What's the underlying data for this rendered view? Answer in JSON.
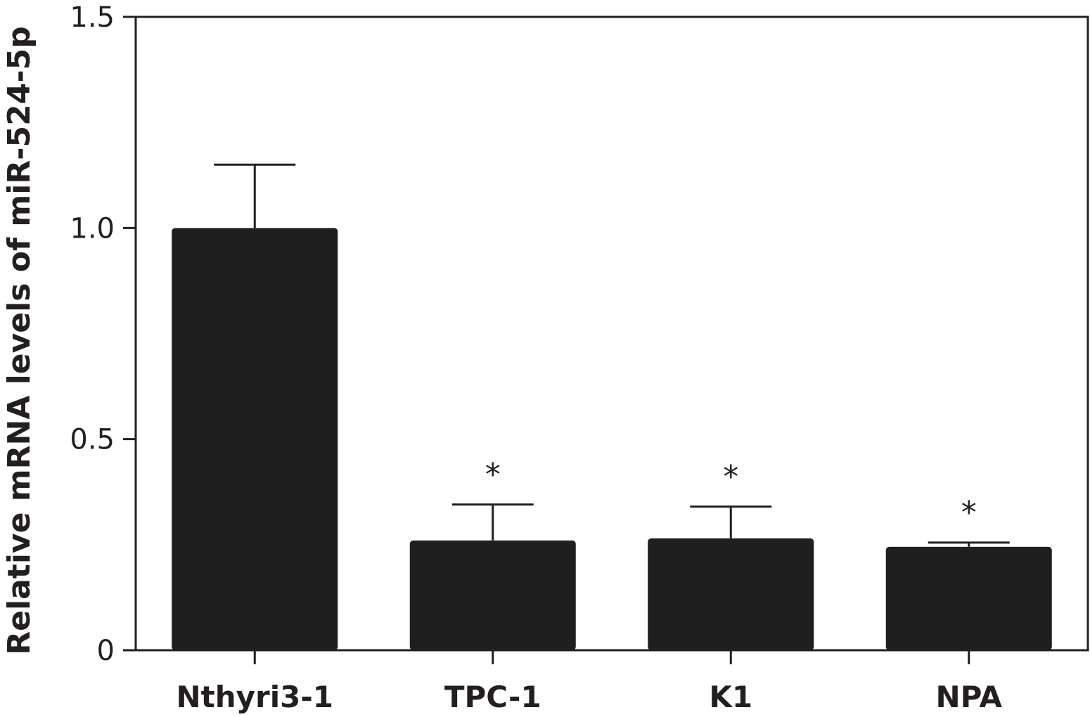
{
  "chart_data": {
    "type": "bar",
    "categories": [
      "Nthyri3-1",
      "TPC-1",
      "K1",
      "NPA"
    ],
    "values": [
      1.0,
      0.26,
      0.265,
      0.245
    ],
    "error_bars": [
      0.15,
      0.085,
      0.075,
      0.01
    ],
    "significance": [
      "",
      "*",
      "*",
      "*"
    ],
    "ylabel": "Relative mRNA levels of miR-524-5p",
    "xlabel": "",
    "ylim": [
      0,
      1.5
    ],
    "yticks": [
      0,
      0.5,
      1.0,
      1.5
    ],
    "ytick_labels": [
      "0",
      "0.5",
      "1.0",
      "1.5"
    ],
    "grid": false,
    "bar_color": "#1f1f1f",
    "axis_color": "#231f20"
  }
}
